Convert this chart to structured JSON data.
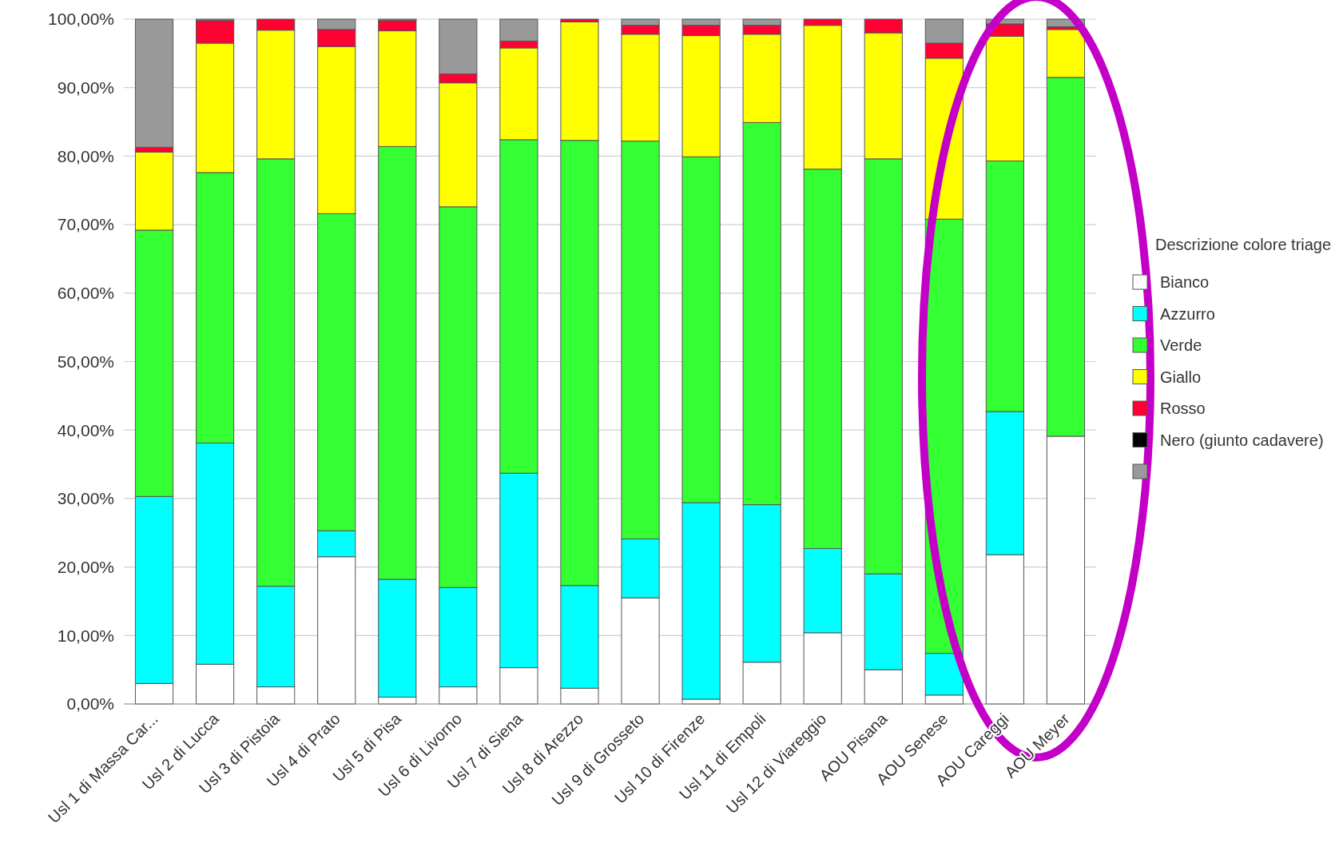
{
  "chart_data": {
    "type": "bar",
    "stacked": true,
    "legend_title": "Descrizione colore triage",
    "legend": "right",
    "grid": "y",
    "categories": [
      "Usl 1 di Massa Car...",
      "Usl 2 di Lucca",
      "Usl 3 di Pistoia",
      "Usl 4 di Prato",
      "Usl 5 di Pisa",
      "Usl 6 di Livorno",
      "Usl 7 di Siena",
      "Usl 8 di Arezzo",
      "Usl 9 di Grosseto",
      "Usl 10 di Firenze",
      "Usl 11 di Empoli",
      "Usl 12 di Viareggio",
      "AOU Pisana",
      "AOU Senese",
      "AOU Careggi",
      "AOU Meyer"
    ],
    "ylim": [
      0,
      100
    ],
    "yticks": [
      {
        "value": 0,
        "label": "0,00%"
      },
      {
        "value": 10,
        "label": "10,00%"
      },
      {
        "value": 20,
        "label": "20,00%"
      },
      {
        "value": 30,
        "label": "30,00%"
      },
      {
        "value": 40,
        "label": "40,00%"
      },
      {
        "value": 50,
        "label": "50,00%"
      },
      {
        "value": 60,
        "label": "60,00%"
      },
      {
        "value": 70,
        "label": "70,00%"
      },
      {
        "value": 80,
        "label": "80,00%"
      },
      {
        "value": 90,
        "label": "90,00%"
      },
      {
        "value": 100,
        "label": "100,00%"
      }
    ],
    "series": [
      {
        "name": "Bianco",
        "color": "#ffffff",
        "values": [
          3.0,
          5.8,
          2.5,
          21.5,
          1.0,
          2.5,
          5.3,
          2.3,
          15.5,
          0.7,
          6.1,
          10.4,
          5.0,
          1.3,
          21.8,
          39.1
        ]
      },
      {
        "name": "Azzurro",
        "color": "#00ffff",
        "values": [
          27.3,
          32.3,
          14.7,
          3.8,
          17.2,
          14.5,
          28.4,
          15.0,
          8.6,
          28.7,
          23.0,
          12.3,
          14.0,
          6.1,
          20.9,
          0
        ]
      },
      {
        "name": "Verde",
        "color": "#33ff33",
        "values": [
          38.9,
          39.5,
          62.4,
          46.3,
          63.2,
          55.6,
          48.7,
          65.0,
          58.1,
          50.5,
          55.8,
          55.4,
          60.6,
          63.4,
          36.6,
          52.4
        ]
      },
      {
        "name": "Giallo",
        "color": "#ffff00",
        "values": [
          11.4,
          18.9,
          18.8,
          24.4,
          16.9,
          18.1,
          13.4,
          17.3,
          15.6,
          17.7,
          12.9,
          21.0,
          18.4,
          23.5,
          18.2,
          7.0
        ]
      },
      {
        "name": "Rosso",
        "color": "#ff0033",
        "values": [
          0.7,
          3.3,
          1.6,
          2.5,
          1.5,
          1.3,
          1.0,
          0.4,
          1.3,
          1.5,
          1.3,
          0.9,
          2.0,
          2.2,
          1.8,
          0.4
        ]
      },
      {
        "name": "Nero (giunto cadavere)",
        "color": "#000000",
        "values": [
          0,
          0,
          0,
          0,
          0,
          0,
          0,
          0,
          0,
          0,
          0,
          0,
          0,
          0,
          0,
          0
        ]
      },
      {
        "color": "#999999",
        "values": [
          18.7,
          0.2,
          0,
          1.5,
          0.2,
          8.0,
          3.2,
          0,
          0.9,
          0.9,
          0.9,
          0,
          0,
          3.5,
          0.7,
          1.1
        ]
      }
    ]
  }
}
